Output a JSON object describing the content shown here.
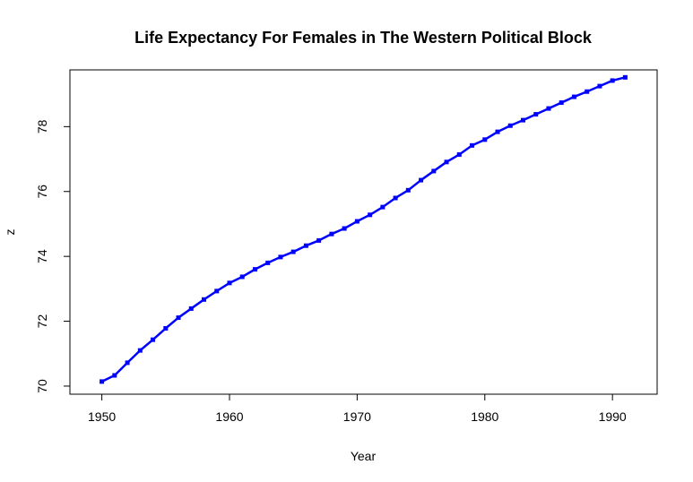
{
  "chart_data": {
    "type": "line",
    "title": "Life Expectancy For Females in The Western Political Block",
    "xlabel": "Year",
    "ylabel": "z",
    "xlim": [
      1947.5,
      1993.5
    ],
    "ylim": [
      69.75,
      79.75
    ],
    "x_ticks": [
      1950,
      1960,
      1970,
      1980,
      1990
    ],
    "y_ticks": [
      70,
      72,
      74,
      76,
      78
    ],
    "grid": false,
    "legend": "none",
    "series": [
      {
        "color": "#0000ff",
        "marker": "square",
        "x": [
          1950,
          1951,
          1952,
          1953,
          1954,
          1955,
          1956,
          1957,
          1958,
          1959,
          1960,
          1961,
          1962,
          1963,
          1964,
          1965,
          1966,
          1967,
          1968,
          1969,
          1970,
          1971,
          1972,
          1973,
          1974,
          1975,
          1976,
          1977,
          1978,
          1979,
          1980,
          1981,
          1982,
          1983,
          1984,
          1985,
          1986,
          1987,
          1988,
          1989,
          1990,
          1991
        ],
        "y": [
          70.14,
          70.33,
          70.72,
          71.1,
          71.43,
          71.78,
          72.11,
          72.39,
          72.67,
          72.93,
          73.18,
          73.37,
          73.6,
          73.8,
          73.98,
          74.14,
          74.33,
          74.49,
          74.69,
          74.86,
          75.08,
          75.28,
          75.52,
          75.8,
          76.04,
          76.35,
          76.63,
          76.91,
          77.14,
          77.42,
          77.6,
          77.84,
          78.03,
          78.2,
          78.38,
          78.56,
          78.74,
          78.92,
          79.08,
          79.25,
          79.42,
          79.52
        ]
      }
    ]
  }
}
